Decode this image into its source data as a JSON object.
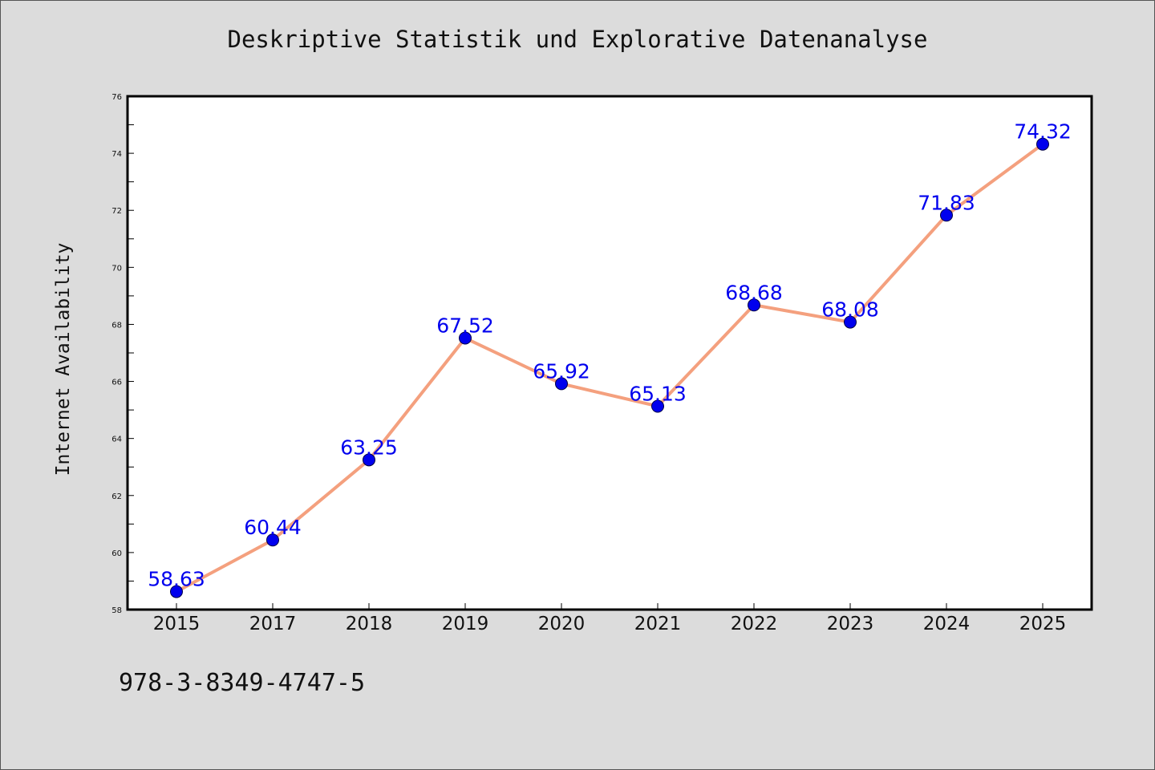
{
  "chart_data": {
    "type": "line",
    "title": "Deskriptive Statistik und Explorative Datenanalyse",
    "xlabel": "",
    "ylabel": "Internet Availability",
    "categories": [
      "2015",
      "2017",
      "2018",
      "2019",
      "2020",
      "2021",
      "2022",
      "2023",
      "2024",
      "2025"
    ],
    "series": [
      {
        "values": [
          58.63,
          60.44,
          63.25,
          67.52,
          65.92,
          65.13,
          68.68,
          68.08,
          71.83,
          74.32
        ],
        "data_labels": [
          "58.63",
          "60.44",
          "63.25",
          "67.52",
          "65.92",
          "65.13",
          "68.68",
          "68.08",
          "71.83",
          "74.32"
        ]
      }
    ],
    "ylim": [
      58,
      76
    ],
    "yticks": [
      "58",
      "60",
      "62",
      "64",
      "66",
      "68",
      "70",
      "72",
      "74",
      "76"
    ],
    "grid": false,
    "line_color": "#f4a07e",
    "marker_color": "#0000ee",
    "label_color": "#0000ee",
    "background_color": "#dcdcdc",
    "plot_background_color": "#ffffff"
  },
  "footer_text": "978-3-8349-4747-5"
}
